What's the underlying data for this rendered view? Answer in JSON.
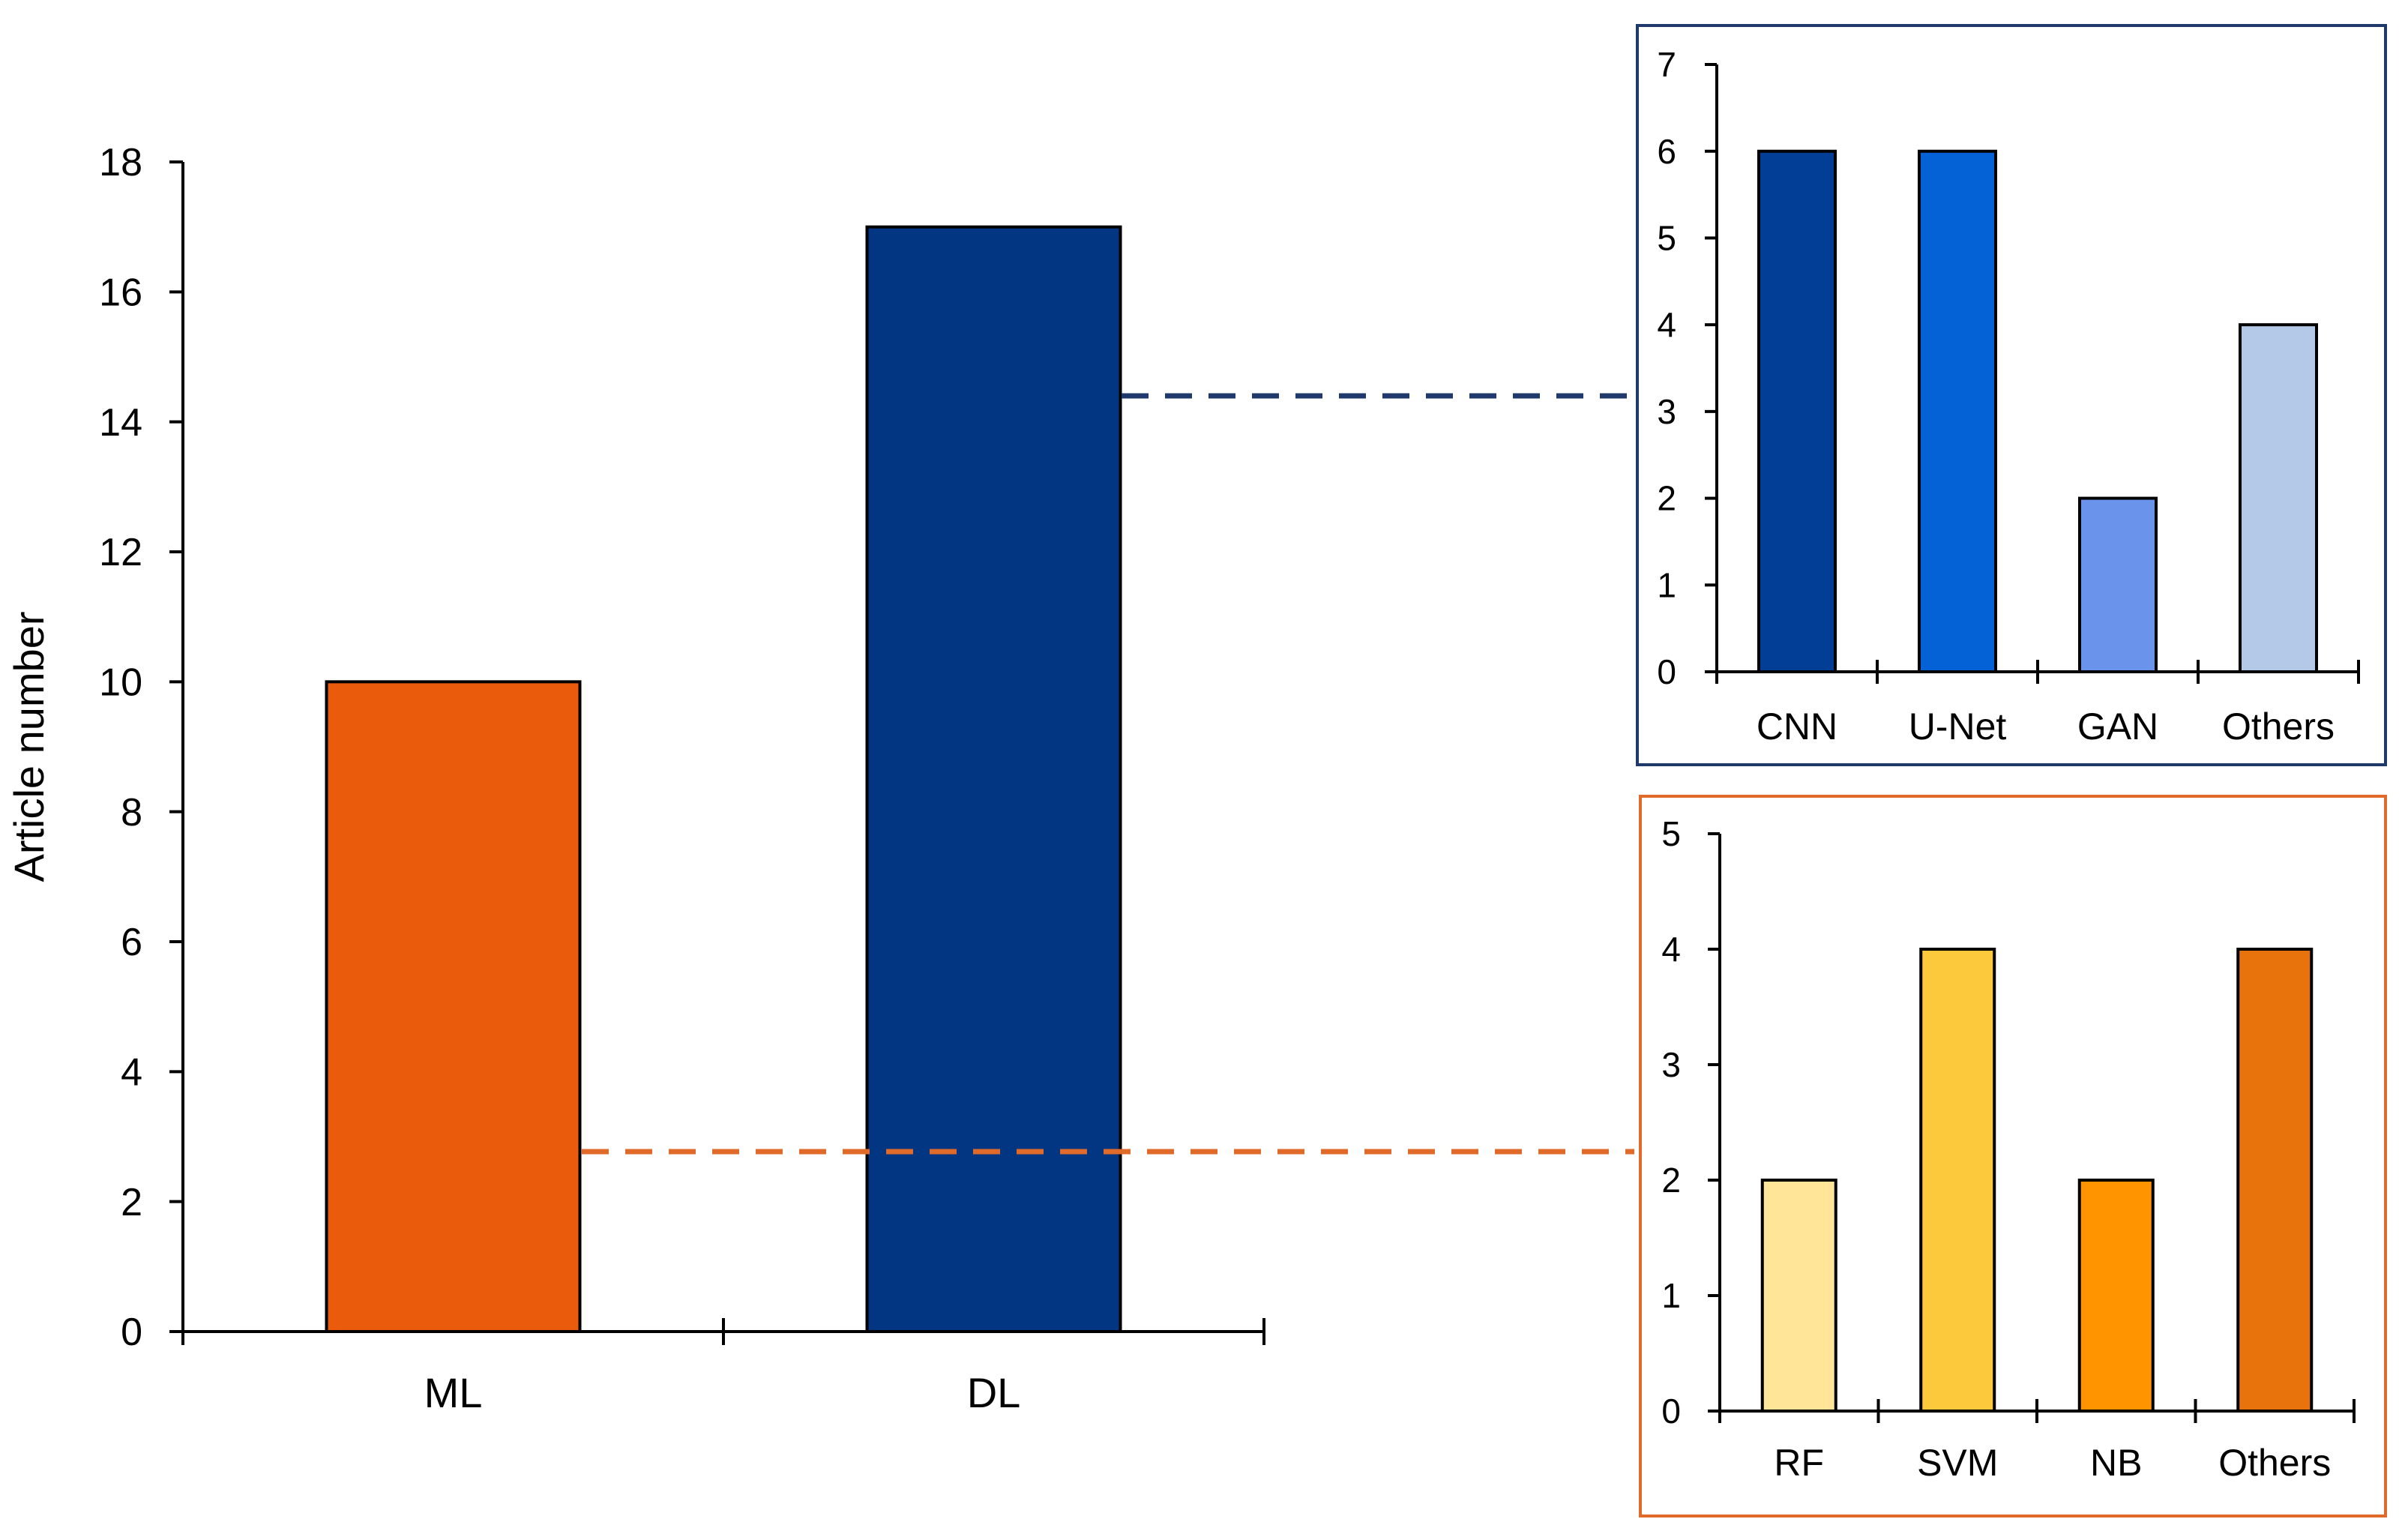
{
  "chart_data": [
    {
      "id": "main",
      "type": "bar",
      "title": "",
      "xlabel": "",
      "ylabel": "Article number",
      "ylim": [
        0,
        18
      ],
      "ytick_step": 2,
      "categories": [
        "ML",
        "DL"
      ],
      "values": [
        10,
        17
      ],
      "colors": [
        "#EA5B0C",
        "#023682"
      ],
      "grid": false
    },
    {
      "id": "dl-breakdown",
      "type": "bar",
      "title": "",
      "xlabel": "",
      "ylabel": "",
      "ylim": [
        0,
        7
      ],
      "ytick_step": 1,
      "categories": [
        "CNN",
        "U-Net",
        "GAN",
        "Others"
      ],
      "values": [
        6,
        6,
        2,
        4
      ],
      "colors": [
        "#023E96",
        "#0562D6",
        "#6A94EC",
        "#B4C8E8"
      ],
      "frame_color": "#1F3A6A",
      "connector_color": "#1F3A6A",
      "grid": false
    },
    {
      "id": "ml-breakdown",
      "type": "bar",
      "title": "",
      "xlabel": "",
      "ylabel": "",
      "ylim": [
        0,
        5
      ],
      "ytick_step": 1,
      "categories": [
        "RF",
        "SVM",
        "NB",
        "Others"
      ],
      "values": [
        2,
        4,
        2,
        4
      ],
      "colors": [
        "#FFE597",
        "#FCC83C",
        "#FF9400",
        "#E8720C"
      ],
      "frame_color": "#E06A2A",
      "connector_color": "#E06A2A",
      "grid": false
    }
  ]
}
